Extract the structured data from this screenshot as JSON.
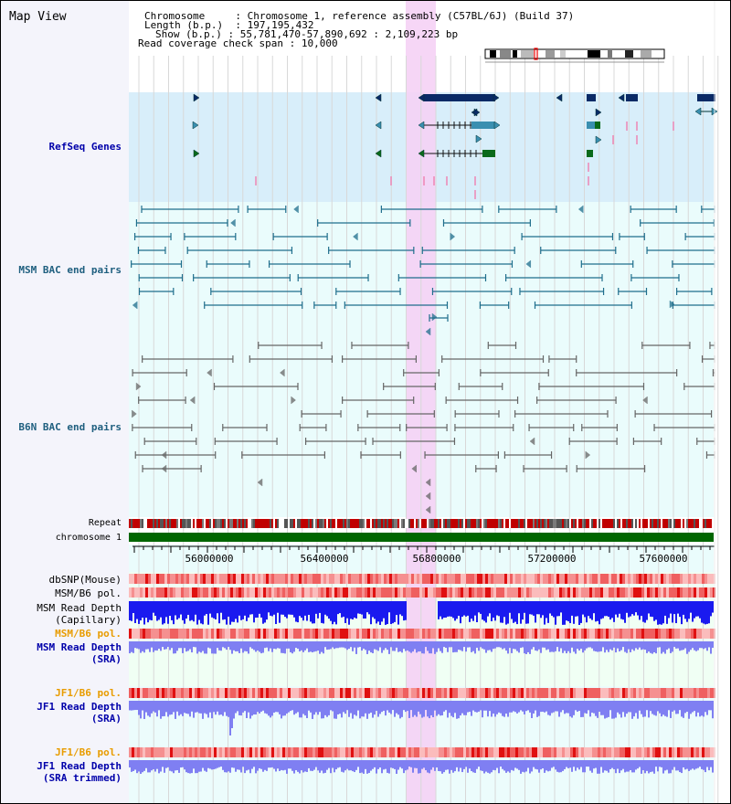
{
  "window": {
    "title": "Map View"
  },
  "header": {
    "chromosome_key": "Chromosome",
    "chromosome_val": "Chromosome 1, reference assembly (C57BL/6J) (Build 37)",
    "length_key": "Length (b.p.)",
    "length_val": "197,195,432",
    "show_key": "Show (b.p.)",
    "show_val": "55,781,470-57,890,692 : 2,109,223 bp",
    "coverage_key": "Read coverage check span",
    "coverage_val": "10,000"
  },
  "tracks": {
    "refseq": "RefSeq Genes",
    "msm_bac": "MSM BAC end pairs",
    "b6n_bac": "B6N BAC end pairs",
    "repeat": "Repeat",
    "chromosome": "chromosome 1",
    "dbsnp": "dbSNP(Mouse)",
    "msm_b6_pol_1": "MSM/B6 pol.",
    "msm_read_depth_cap_1": "MSM Read Depth",
    "msm_read_depth_cap_2": "(Capillary)",
    "msm_b6_pol_2": "MSM/B6 pol.",
    "msm_read_depth_sra_1": "MSM Read Depth",
    "msm_read_depth_sra_2": "(SRA)",
    "jf1_b6_pol_1": "JF1/B6 pol.",
    "jf1_read_depth_sra_1": "JF1 Read Depth",
    "jf1_read_depth_sra_2": "(SRA)",
    "jf1_b6_pol_2": "JF1/B6 pol.",
    "jf1_read_depth_trim_1": "JF1 Read Depth",
    "jf1_read_depth_trim_2": "(SRA trimmed)"
  },
  "axis": {
    "ticks": [
      "56000000",
      "56400000",
      "56800000",
      "57200000",
      "57600000"
    ]
  },
  "colors": {
    "refseq_bg": "#d8eefa",
    "bac_bg": "#eafcfc",
    "highlight": "#f5d2f5",
    "msm_bac": "#1f6e8c",
    "b6n_bac": "#666666",
    "chromosome_bar": "#006600",
    "depth_blue": "#1a1aef",
    "depth_light": "#7f7ff2",
    "label_blue": "#0000aa",
    "label_orange": "#e89c00",
    "label_teal": "#1f5f7f"
  }
}
